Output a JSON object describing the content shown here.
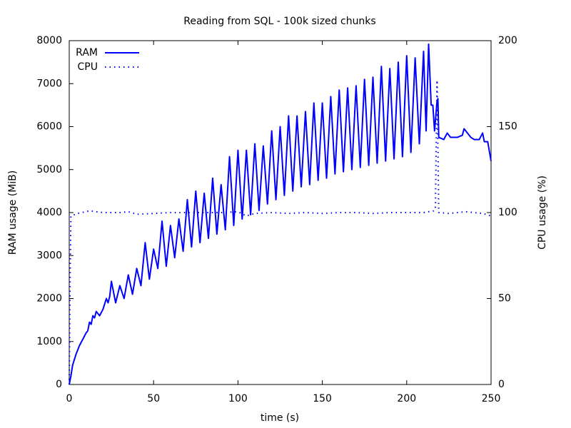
{
  "chart_data": {
    "type": "line",
    "title": "Reading from SQL - 100k sized chunks",
    "xlabel": "time (s)",
    "ylabel": "RAM usage (MiB)",
    "y2label": "CPU usage (%)",
    "xlim": [
      0,
      250
    ],
    "xticks": [
      0,
      50,
      100,
      150,
      200,
      250
    ],
    "ylim": [
      0,
      8000
    ],
    "yticks": [
      0,
      1000,
      2000,
      3000,
      4000,
      5000,
      6000,
      7000,
      8000
    ],
    "y2lim": [
      0,
      200
    ],
    "y2ticks": [
      0,
      50,
      100,
      150,
      200
    ],
    "legend": "top-left",
    "grid": false,
    "series": [
      {
        "name": "RAM",
        "color": "#0000ff",
        "style": "solid",
        "x": [
          0,
          1,
          2,
          4,
          6,
          8,
          10,
          11,
          12,
          13,
          14,
          15,
          16,
          18,
          20,
          22,
          23,
          24,
          25,
          27.5,
          30,
          32.5,
          35,
          37.5,
          40,
          42.5,
          45,
          47.5,
          50,
          52.5,
          55,
          57.5,
          60,
          62.5,
          65,
          67.5,
          70,
          72.5,
          75,
          77.5,
          80,
          82.5,
          85,
          87.5,
          90,
          92.5,
          95,
          97.5,
          100,
          102.5,
          105,
          107.5,
          110,
          112.5,
          115,
          117.5,
          120,
          122.5,
          125,
          127.5,
          130,
          132.5,
          135,
          137.5,
          140,
          142.5,
          145,
          147.5,
          150,
          152.5,
          155,
          157.5,
          160,
          162.5,
          165,
          167.5,
          170,
          172.5,
          175,
          177.5,
          180,
          182.5,
          185,
          187.5,
          190,
          192.5,
          195,
          197.5,
          200,
          202.5,
          205,
          207.5,
          210,
          211.5,
          213,
          214.5,
          215.5,
          216.5,
          218,
          218.5,
          219,
          222,
          224,
          226,
          230,
          233,
          234,
          236,
          238,
          240,
          243,
          245,
          246,
          248,
          250
        ],
        "values": [
          0,
          200,
          450,
          700,
          900,
          1050,
          1200,
          1250,
          1450,
          1400,
          1600,
          1550,
          1700,
          1600,
          1750,
          2000,
          1900,
          2050,
          2400,
          1900,
          2300,
          2000,
          2550,
          2100,
          2700,
          2300,
          3300,
          2450,
          3150,
          2700,
          3800,
          2750,
          3700,
          2950,
          3850,
          3100,
          4300,
          3200,
          4500,
          3300,
          4450,
          3400,
          4800,
          3500,
          4650,
          3600,
          5300,
          3700,
          5450,
          3850,
          5450,
          3950,
          5600,
          4050,
          5550,
          4200,
          5900,
          4300,
          6000,
          4400,
          6250,
          4500,
          6250,
          4600,
          6350,
          4650,
          6550,
          4750,
          6550,
          4800,
          6700,
          4900,
          6850,
          4950,
          6900,
          5000,
          6950,
          5050,
          7100,
          5100,
          7150,
          5150,
          7400,
          5200,
          7350,
          5250,
          7500,
          5300,
          7650,
          5400,
          7600,
          5600,
          7750,
          5900,
          7920,
          6500,
          6500,
          5900,
          6600,
          6650,
          5750,
          5700,
          5850,
          5750,
          5750,
          5800,
          5950,
          5850,
          5750,
          5700,
          5700,
          5850,
          5650,
          5650,
          5200
        ]
      },
      {
        "name": "CPU",
        "color": "#0000ff",
        "style": "dotted",
        "axis": "y2",
        "x": [
          0,
          0.5,
          1,
          5,
          12,
          20,
          30,
          35,
          40,
          50,
          60,
          70,
          80,
          90,
          100,
          105,
          110,
          120,
          130,
          140,
          150,
          160,
          170,
          180,
          190,
          200,
          210,
          216,
          217,
          218,
          219,
          225,
          235,
          245,
          250
        ],
        "values": [
          0,
          60,
          98,
          99.5,
          101,
          100,
          100,
          100.5,
          99,
          99.5,
          100,
          100,
          100,
          100,
          100.5,
          98,
          99.5,
          100,
          99.5,
          100,
          99.5,
          100,
          100,
          99.5,
          100,
          100,
          100,
          101,
          102,
          177,
          100,
          99.5,
          100.5,
          99.5,
          98
        ]
      }
    ]
  }
}
